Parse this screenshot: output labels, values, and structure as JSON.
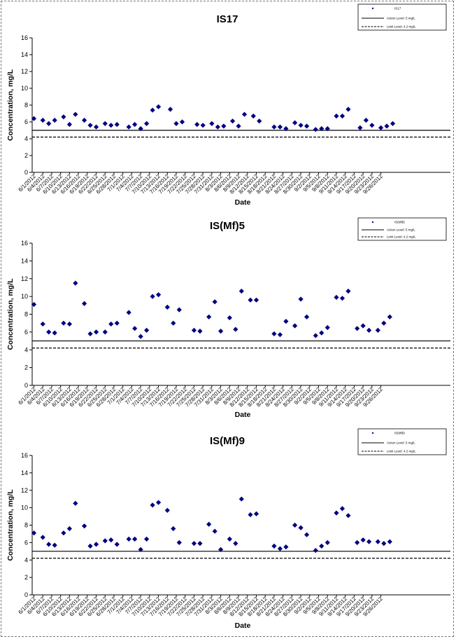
{
  "chart_data": [
    {
      "type": "scatter",
      "title": "IS17",
      "xlabel": "Date",
      "ylabel": "Concentration, mg/L",
      "ylim": [
        0,
        16
      ],
      "yticks": [
        "0",
        "2",
        "4",
        "6",
        "8",
        "10",
        "12",
        "14",
        "16"
      ],
      "x_tick_labels": [
        "6/1/2012",
        "6/4/2012",
        "6/7/2012",
        "6/10/2012",
        "6/13/2012",
        "6/16/2012",
        "6/19/2012",
        "6/22/2012",
        "6/25/2012",
        "6/28/2012",
        "7/1/2012",
        "7/4/2012",
        "7/7/2012",
        "7/10/2012",
        "7/13/2012",
        "7/16/2012",
        "7/19/2012",
        "7/22/2012",
        "7/25/2012",
        "7/28/2012",
        "7/31/2012",
        "8/3/2012",
        "8/6/2012",
        "8/9/2012",
        "8/12/2012",
        "8/15/2012",
        "8/18/2012",
        "8/21/2012",
        "8/24/2012",
        "8/27/2012",
        "8/30/2012",
        "9/2/2012",
        "9/5/2012",
        "9/8/2012",
        "9/11/2012",
        "9/14/2012",
        "9/17/2012",
        "9/20/2012",
        "9/23/2012",
        "9/26/2012"
      ],
      "grid": false,
      "legend": {
        "position": "top-right",
        "entries": [
          "IS17",
          "Action Level: 5 mg/L",
          "Limit Level: 4.2 mg/L"
        ]
      },
      "series": [
        {
          "name": "IS17",
          "marker": "diamond",
          "color": "#000080",
          "points": [
            [
              "6/1/2012",
              6.4
            ],
            [
              "6/4/2012",
              6.2
            ],
            [
              "6/6/2012",
              5.8
            ],
            [
              "6/8/2012",
              6.2
            ],
            [
              "6/11/2012",
              6.6
            ],
            [
              "6/13/2012",
              5.7
            ],
            [
              "6/15/2012",
              6.9
            ],
            [
              "6/18/2012",
              6.2
            ],
            [
              "6/20/2012",
              5.6
            ],
            [
              "6/22/2012",
              5.4
            ],
            [
              "6/25/2012",
              5.8
            ],
            [
              "6/27/2012",
              5.6
            ],
            [
              "6/29/2012",
              5.7
            ],
            [
              "7/3/2012",
              5.4
            ],
            [
              "7/5/2012",
              5.7
            ],
            [
              "7/7/2012",
              5.2
            ],
            [
              "7/9/2012",
              5.8
            ],
            [
              "7/11/2012",
              7.4
            ],
            [
              "7/13/2012",
              7.8
            ],
            [
              "7/17/2012",
              7.5
            ],
            [
              "7/19/2012",
              5.8
            ],
            [
              "7/21/2012",
              6.0
            ],
            [
              "7/26/2012",
              5.7
            ],
            [
              "7/28/2012",
              5.6
            ],
            [
              "7/31/2012",
              5.8
            ],
            [
              "8/2/2012",
              5.4
            ],
            [
              "8/4/2012",
              5.5
            ],
            [
              "8/7/2012",
              6.1
            ],
            [
              "8/9/2012",
              5.5
            ],
            [
              "8/11/2012",
              6.9
            ],
            [
              "8/14/2012",
              6.7
            ],
            [
              "8/16/2012",
              6.1
            ],
            [
              "8/21/2012",
              5.4
            ],
            [
              "8/23/2012",
              5.4
            ],
            [
              "8/25/2012",
              5.2
            ],
            [
              "8/28/2012",
              5.9
            ],
            [
              "8/30/2012",
              5.6
            ],
            [
              "9/1/2012",
              5.5
            ],
            [
              "9/4/2012",
              5.1
            ],
            [
              "9/6/2012",
              5.2
            ],
            [
              "9/8/2012",
              5.2
            ],
            [
              "9/11/2012",
              6.7
            ],
            [
              "9/13/2012",
              6.7
            ],
            [
              "9/15/2012",
              7.5
            ],
            [
              "9/19/2012",
              5.3
            ],
            [
              "9/21/2012",
              6.2
            ],
            [
              "9/23/2012",
              5.6
            ],
            [
              "9/26/2012",
              5.3
            ],
            [
              "9/28/2012",
              5.5
            ],
            [
              "9/30/2012",
              5.8
            ]
          ]
        },
        {
          "name": "Action Level: 5 mg/L",
          "style": "solid",
          "color": "#000000",
          "y": 5.0
        },
        {
          "name": "Limit Level: 4.2 mg/L",
          "style": "dashed",
          "color": "#000000",
          "y": 4.2
        }
      ]
    },
    {
      "type": "scatter",
      "title": "IS(Mf)5",
      "xlabel": "Date",
      "ylabel": "Concentration, mg/L",
      "ylim": [
        0,
        16
      ],
      "yticks": [
        "0",
        "2",
        "4",
        "6",
        "8",
        "10",
        "12",
        "14",
        "16"
      ],
      "x_tick_labels": [
        "6/1/2012",
        "6/4/2012",
        "6/7/2012",
        "6/10/2012",
        "6/13/2012",
        "6/16/2012",
        "6/19/2012",
        "6/22/2012",
        "6/25/2012",
        "6/28/2012",
        "7/1/2012",
        "7/4/2012",
        "7/7/2012",
        "7/10/2012",
        "7/13/2012",
        "7/16/2012",
        "7/19/2012",
        "7/22/2012",
        "7/25/2012",
        "7/28/2012",
        "7/31/2012",
        "8/3/2012",
        "8/6/2012",
        "8/9/2012",
        "8/12/2012",
        "8/15/2012",
        "8/18/2012",
        "8/21/2012",
        "8/24/2012",
        "8/27/2012",
        "8/30/2012",
        "9/2/2012",
        "9/5/2012",
        "9/8/2012",
        "9/11/2012",
        "9/14/2012",
        "9/17/2012",
        "9/20/2012",
        "9/23/2012",
        "9/26/2012"
      ],
      "grid": false,
      "legend": {
        "position": "top-right",
        "entries": [
          "IS(Mf)5",
          "Action Level: 5 mg/L",
          "Limit Level: 4.2 mg/L"
        ]
      },
      "series": [
        {
          "name": "IS(Mf)5",
          "marker": "diamond",
          "color": "#000080",
          "points": [
            [
              "6/1/2012",
              9.1
            ],
            [
              "6/4/2012",
              6.9
            ],
            [
              "6/6/2012",
              6.0
            ],
            [
              "6/8/2012",
              5.9
            ],
            [
              "6/11/2012",
              7.0
            ],
            [
              "6/13/2012",
              6.9
            ],
            [
              "6/15/2012",
              11.5
            ],
            [
              "6/18/2012",
              9.2
            ],
            [
              "6/20/2012",
              5.8
            ],
            [
              "6/22/2012",
              6.0
            ],
            [
              "6/25/2012",
              6.0
            ],
            [
              "6/27/2012",
              6.9
            ],
            [
              "6/29/2012",
              7.0
            ],
            [
              "7/3/2012",
              8.2
            ],
            [
              "7/5/2012",
              6.4
            ],
            [
              "7/7/2012",
              5.5
            ],
            [
              "7/9/2012",
              6.2
            ],
            [
              "7/11/2012",
              10.0
            ],
            [
              "7/13/2012",
              10.2
            ],
            [
              "7/16/2012",
              8.8
            ],
            [
              "7/18/2012",
              7.0
            ],
            [
              "7/20/2012",
              8.5
            ],
            [
              "7/25/2012",
              6.2
            ],
            [
              "7/27/2012",
              6.1
            ],
            [
              "7/30/2012",
              7.7
            ],
            [
              "8/1/2012",
              9.4
            ],
            [
              "8/3/2012",
              6.1
            ],
            [
              "8/6/2012",
              7.6
            ],
            [
              "8/8/2012",
              6.3
            ],
            [
              "8/10/2012",
              10.6
            ],
            [
              "8/13/2012",
              9.6
            ],
            [
              "8/15/2012",
              9.6
            ],
            [
              "8/21/2012",
              5.8
            ],
            [
              "8/23/2012",
              5.7
            ],
            [
              "8/25/2012",
              7.2
            ],
            [
              "8/28/2012",
              6.7
            ],
            [
              "8/30/2012",
              9.7
            ],
            [
              "9/1/2012",
              7.7
            ],
            [
              "9/4/2012",
              5.6
            ],
            [
              "9/6/2012",
              5.9
            ],
            [
              "9/8/2012",
              6.5
            ],
            [
              "9/11/2012",
              9.9
            ],
            [
              "9/13/2012",
              9.8
            ],
            [
              "9/15/2012",
              10.6
            ],
            [
              "9/18/2012",
              6.4
            ],
            [
              "9/20/2012",
              6.7
            ],
            [
              "9/22/2012",
              6.2
            ],
            [
              "9/25/2012",
              6.2
            ],
            [
              "9/27/2012",
              7.0
            ],
            [
              "9/29/2012",
              7.7
            ]
          ]
        },
        {
          "name": "Action Level: 5 mg/L",
          "style": "solid",
          "color": "#000000",
          "y": 5.0
        },
        {
          "name": "Limit Level: 4.2 mg/L",
          "style": "dashed",
          "color": "#000000",
          "y": 4.2
        }
      ]
    },
    {
      "type": "scatter",
      "title": "IS(Mf)9",
      "xlabel": "Date",
      "ylabel": "Concentration, mg/L",
      "ylim": [
        0,
        16
      ],
      "yticks": [
        "0",
        "2",
        "4",
        "6",
        "8",
        "10",
        "12",
        "14",
        "16"
      ],
      "x_tick_labels": [
        "6/1/2012",
        "6/4/2012",
        "6/7/2012",
        "6/10/2012",
        "6/13/2012",
        "6/16/2012",
        "6/19/2012",
        "6/22/2012",
        "6/25/2012",
        "6/28/2012",
        "7/1/2012",
        "7/4/2012",
        "7/7/2012",
        "7/10/2012",
        "7/13/2012",
        "7/16/2012",
        "7/19/2012",
        "7/22/2012",
        "7/25/2012",
        "7/28/2012",
        "7/31/2012",
        "8/3/2012",
        "8/6/2012",
        "8/9/2012",
        "8/12/2012",
        "8/15/2012",
        "8/18/2012",
        "8/21/2012",
        "8/24/2012",
        "8/27/2012",
        "8/30/2012",
        "9/2/2012",
        "9/5/2012",
        "9/8/2012",
        "9/11/2012",
        "9/14/2012",
        "9/17/2012",
        "9/20/2012",
        "9/23/2012",
        "9/26/2012"
      ],
      "grid": false,
      "legend": {
        "position": "top-right",
        "entries": [
          "IS(Mf)9",
          "Action Level: 5 mg/L",
          "Limit Level: 4.2 mg/L"
        ]
      },
      "series": [
        {
          "name": "IS(Mf)9",
          "marker": "diamond",
          "color": "#000080",
          "points": [
            [
              "6/1/2012",
              7.1
            ],
            [
              "6/4/2012",
              6.6
            ],
            [
              "6/6/2012",
              5.8
            ],
            [
              "6/8/2012",
              5.7
            ],
            [
              "6/11/2012",
              7.1
            ],
            [
              "6/13/2012",
              7.6
            ],
            [
              "6/15/2012",
              10.5
            ],
            [
              "6/18/2012",
              7.9
            ],
            [
              "6/20/2012",
              5.6
            ],
            [
              "6/22/2012",
              5.8
            ],
            [
              "6/25/2012",
              6.2
            ],
            [
              "6/27/2012",
              6.3
            ],
            [
              "6/29/2012",
              5.8
            ],
            [
              "7/3/2012",
              6.4
            ],
            [
              "7/5/2012",
              6.4
            ],
            [
              "7/7/2012",
              5.2
            ],
            [
              "7/9/2012",
              6.4
            ],
            [
              "7/11/2012",
              10.3
            ],
            [
              "7/13/2012",
              10.6
            ],
            [
              "7/16/2012",
              9.7
            ],
            [
              "7/18/2012",
              7.6
            ],
            [
              "7/20/2012",
              6.0
            ],
            [
              "7/25/2012",
              5.9
            ],
            [
              "7/27/2012",
              5.9
            ],
            [
              "7/30/2012",
              8.1
            ],
            [
              "8/1/2012",
              7.3
            ],
            [
              "8/3/2012",
              5.2
            ],
            [
              "8/6/2012",
              6.4
            ],
            [
              "8/8/2012",
              5.9
            ],
            [
              "8/10/2012",
              11.0
            ],
            [
              "8/13/2012",
              9.2
            ],
            [
              "8/15/2012",
              9.3
            ],
            [
              "8/21/2012",
              5.6
            ],
            [
              "8/23/2012",
              5.3
            ],
            [
              "8/25/2012",
              5.5
            ],
            [
              "8/28/2012",
              8.0
            ],
            [
              "8/30/2012",
              7.7
            ],
            [
              "9/1/2012",
              6.9
            ],
            [
              "9/4/2012",
              5.1
            ],
            [
              "9/6/2012",
              5.6
            ],
            [
              "9/8/2012",
              6.0
            ],
            [
              "9/11/2012",
              9.4
            ],
            [
              "9/13/2012",
              9.9
            ],
            [
              "9/15/2012",
              9.1
            ],
            [
              "9/18/2012",
              6.0
            ],
            [
              "9/20/2012",
              6.3
            ],
            [
              "9/22/2012",
              6.1
            ],
            [
              "9/25/2012",
              6.1
            ],
            [
              "9/27/2012",
              5.9
            ],
            [
              "9/29/2012",
              6.1
            ]
          ]
        },
        {
          "name": "Action Level: 5 mg/L",
          "style": "solid",
          "color": "#000000",
          "y": 5.0
        },
        {
          "name": "Limit Level: 4.2 mg/L",
          "style": "dashed",
          "color": "#000000",
          "y": 4.2
        }
      ]
    }
  ]
}
